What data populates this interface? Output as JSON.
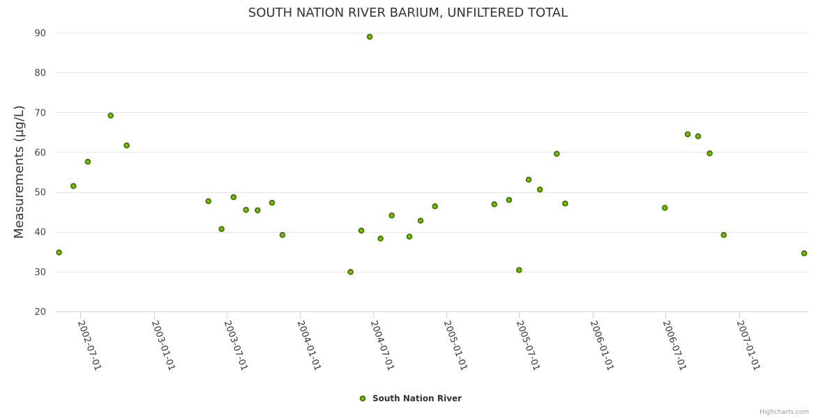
{
  "chart_data": {
    "type": "scatter",
    "title": "SOUTH NATION RIVER BARIUM, UNFILTERED TOTAL",
    "ylabel": "Measurements (µg/L)",
    "xlabel": "",
    "ylim": [
      20,
      90
    ],
    "yticks": [
      20,
      30,
      40,
      50,
      60,
      70,
      80,
      90
    ],
    "xlim": [
      "2002-05-01",
      "2007-06-25"
    ],
    "xticks": [
      "2002-07-01",
      "2003-01-01",
      "2003-07-01",
      "2004-01-01",
      "2004-07-01",
      "2005-01-01",
      "2005-07-01",
      "2006-01-01",
      "2006-07-01",
      "2007-01-01"
    ],
    "grid": true,
    "legend_position": "bottom-center",
    "series": [
      {
        "name": "South Nation River",
        "color": "#7cb900",
        "x": [
          "2002-05-09",
          "2002-06-14",
          "2002-07-20",
          "2002-09-15",
          "2002-10-25",
          "2003-05-17",
          "2003-06-19",
          "2003-07-19",
          "2003-08-19",
          "2003-09-17",
          "2003-10-23",
          "2003-11-18",
          "2004-05-06",
          "2004-06-02",
          "2004-06-23",
          "2004-07-20",
          "2004-08-17",
          "2004-09-30",
          "2004-10-28",
          "2004-12-03",
          "2005-04-30",
          "2005-06-06",
          "2005-07-01",
          "2005-07-25",
          "2005-08-22",
          "2005-10-03",
          "2005-10-24",
          "2006-06-30",
          "2006-08-26",
          "2006-09-21",
          "2006-10-20",
          "2006-11-24",
          "2007-06-13"
        ],
        "y": [
          34.8,
          51.5,
          57.6,
          69.2,
          61.7,
          47.7,
          40.7,
          48.7,
          45.5,
          45.4,
          47.3,
          39.2,
          29.9,
          40.3,
          89.0,
          38.3,
          44.1,
          38.8,
          42.8,
          46.4,
          46.9,
          48.0,
          30.4,
          53.1,
          50.6,
          59.6,
          47.1,
          46.0,
          64.5,
          64.0,
          59.7,
          39.2,
          34.6
        ]
      }
    ]
  },
  "legend": {
    "label": "South Nation River"
  },
  "credits": "Highcharts.com"
}
